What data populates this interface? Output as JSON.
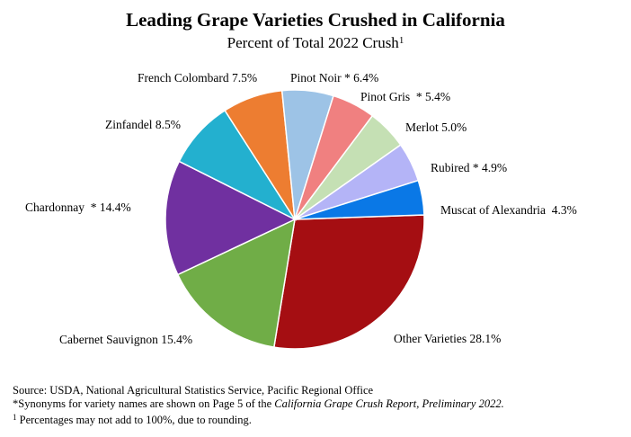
{
  "chart_data": {
    "type": "pie",
    "title": "Leading Grape Varieties Crushed in California",
    "subtitle": "Percent of Total 2022 Crush",
    "subtitle_note": "1",
    "slices": [
      {
        "name": "Other Varieties",
        "value": 28.1,
        "label": "Other Varieties 28.1%",
        "color": "#a50e12"
      },
      {
        "name": "Cabernet Sauvignon",
        "value": 15.4,
        "label": "Cabernet Sauvignon 15.4%",
        "color": "#70ad47"
      },
      {
        "name": "Chardonnay",
        "value": 14.4,
        "label": "Chardonnay  * 14.4%",
        "color": "#7030a0"
      },
      {
        "name": "Zinfandel",
        "value": 8.5,
        "label": "Zinfandel 8.5%",
        "color": "#23b0cf"
      },
      {
        "name": "French Colombard",
        "value": 7.5,
        "label": "French Colombard 7.5%",
        "color": "#ed7d31"
      },
      {
        "name": "Pinot Noir",
        "value": 6.4,
        "label": "Pinot Noir * 6.4%",
        "color": "#9dc3e6"
      },
      {
        "name": "Pinot Gris",
        "value": 5.4,
        "label": "Pinot Gris  * 5.4%",
        "color": "#f08080"
      },
      {
        "name": "Merlot",
        "value": 5.0,
        "label": "Merlot 5.0%",
        "color": "#c5e0b4"
      },
      {
        "name": "Rubired",
        "value": 4.9,
        "label": "Rubired * 4.9%",
        "color": "#b4b4f7"
      },
      {
        "name": "Muscat of Alexandria",
        "value": 4.3,
        "label": "Muscat of Alexandria  4.3%",
        "color": "#0a78e6"
      }
    ]
  },
  "footer": {
    "source": "Source: USDA, National Agricultural Statistics Service, Pacific  Regional  Office",
    "synonyms_prefix": "*Synonyms for variety names are shown on Page 5 of the",
    "synonyms_report": "California Grape Crush Report, Preliminary 2022.",
    "rounding_mark": "1",
    "rounding_text": "Percentages may not add to 100%, due to rounding."
  }
}
